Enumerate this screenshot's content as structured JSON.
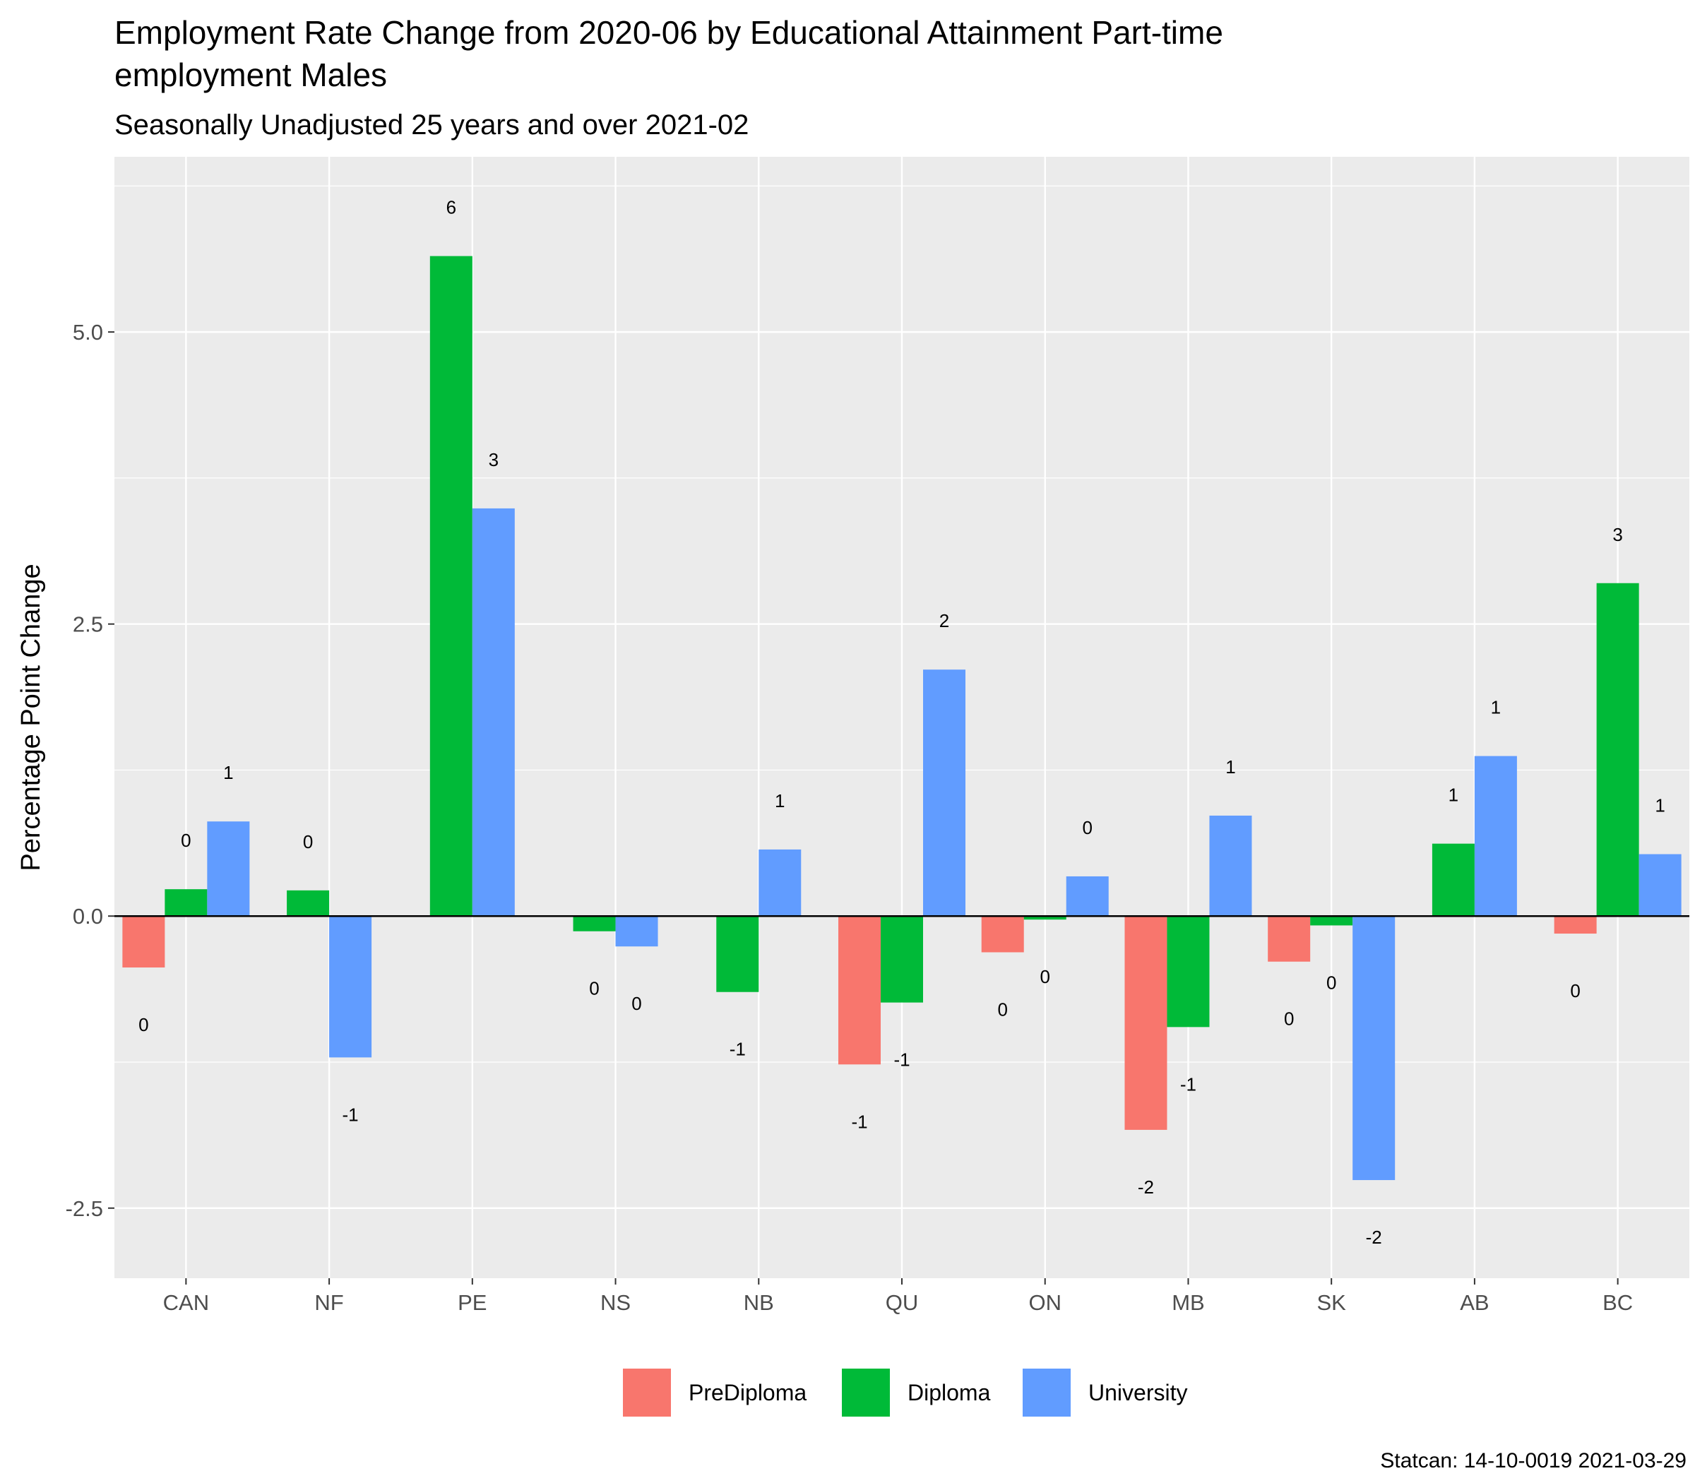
{
  "chart_data": {
    "type": "bar",
    "title": "Employment Rate Change from 2020-06 by Educational Attainment Part-time employment Males",
    "title_lines": [
      "Employment Rate Change from 2020-06 by Educational Attainment Part-time",
      "employment Males"
    ],
    "subtitle": "Seasonally Unadjusted 25 years and over 2021-02",
    "ylabel": "Percentage Point Change",
    "xlabel": "",
    "caption": "Statcan: 14-10-0019 2021-03-29",
    "categories": [
      "CAN",
      "NF",
      "PE",
      "NS",
      "NB",
      "QU",
      "ON",
      "MB",
      "SK",
      "AB",
      "BC"
    ],
    "ylim": [
      -3.1,
      6.5
    ],
    "yticks": [
      -2.5,
      0.0,
      2.5,
      5.0
    ],
    "ytick_labels": [
      "-2.5",
      "0.0",
      "2.5",
      "5.0"
    ],
    "grid": true,
    "legend_position": "bottom",
    "series": [
      {
        "name": "PreDiploma",
        "color": "#F8766D",
        "values": [
          -0.44,
          null,
          null,
          null,
          null,
          -1.27,
          -0.31,
          -1.83,
          -0.39,
          null,
          -0.15
        ],
        "labels": [
          "0",
          null,
          null,
          null,
          null,
          "-1",
          "0",
          "-2",
          "0",
          null,
          "0"
        ]
      },
      {
        "name": "Diploma",
        "color": "#00BA38",
        "values": [
          0.23,
          0.22,
          5.65,
          -0.13,
          -0.65,
          -0.74,
          -0.03,
          -0.95,
          -0.08,
          0.62,
          2.85
        ],
        "labels": [
          "0",
          "0",
          "6",
          "0",
          "-1",
          "-1",
          "0",
          "-1",
          "0",
          "1",
          "3"
        ]
      },
      {
        "name": "University",
        "color": "#619CFF",
        "values": [
          0.81,
          -1.21,
          3.49,
          -0.26,
          0.57,
          2.11,
          0.34,
          0.86,
          -2.26,
          1.37,
          0.53
        ],
        "labels": [
          "1",
          "-1",
          "3",
          "0",
          "1",
          "2",
          "0",
          "1",
          "-2",
          "1",
          "1"
        ]
      }
    ]
  }
}
